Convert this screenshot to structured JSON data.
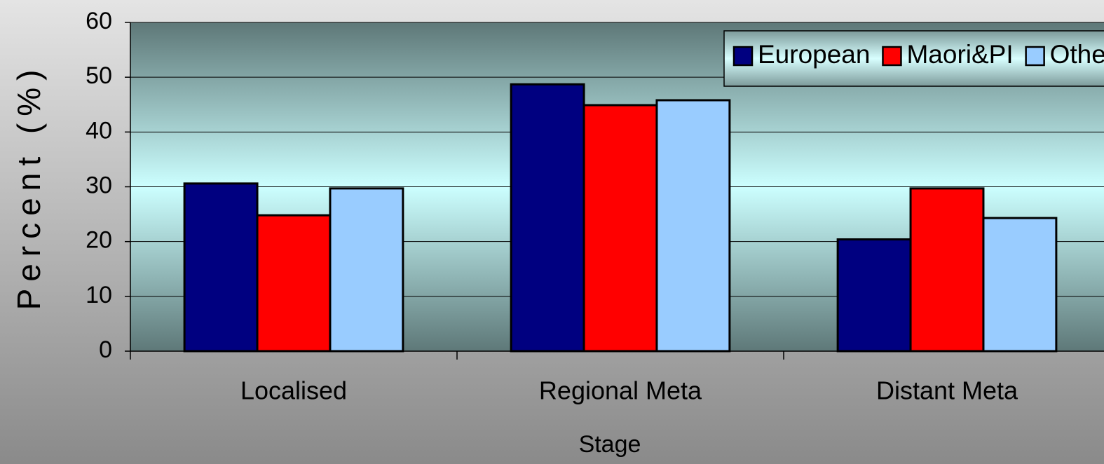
{
  "chart_data": {
    "type": "bar",
    "x_label": "Stage",
    "y_label": "Percent (%)",
    "categories": [
      "Localised",
      "Regional Meta",
      "Distant Meta"
    ],
    "series": [
      {
        "name": "European",
        "color": "#000080",
        "values": [
          30.6,
          48.7,
          20.4
        ]
      },
      {
        "name": "Maori&PI",
        "color": "#ff0000",
        "values": [
          24.8,
          44.9,
          29.7
        ]
      },
      {
        "name": "Other",
        "color": "#99ccff",
        "values": [
          29.7,
          45.8,
          24.3
        ]
      }
    ],
    "ylim": [
      0,
      60
    ],
    "yticks": [
      0,
      10,
      20,
      30,
      40,
      50,
      60
    ],
    "grid": true,
    "legend": "top-right"
  }
}
